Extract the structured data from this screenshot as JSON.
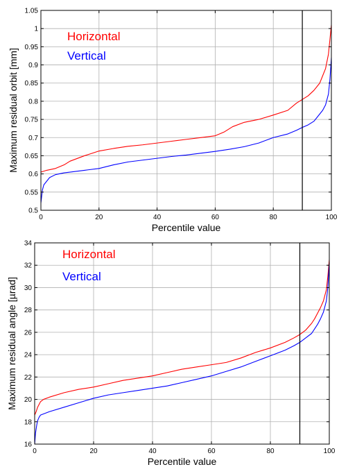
{
  "chart_data": [
    {
      "type": "line",
      "xlabel": "Percentile value",
      "ylabel": "Maximum residual orbit [mm]",
      "xlim": [
        0,
        100
      ],
      "ylim": [
        0.5,
        1.05
      ],
      "xticks": [
        0,
        20,
        40,
        60,
        80,
        100
      ],
      "yticks": [
        0.5,
        0.55,
        0.6,
        0.65,
        0.7,
        0.75,
        0.8,
        0.85,
        0.9,
        0.95,
        1,
        1.05
      ],
      "ytick_labels": [
        "0.5",
        "0.55",
        "0.6",
        "0.65",
        "0.7",
        "0.75",
        "0.8",
        "0.85",
        "0.9",
        "0.95",
        "1",
        "1.05"
      ],
      "grid": true,
      "legend_position": "top-left",
      "vline": 90,
      "series": [
        {
          "name": "Horizontal",
          "color": "#ff0000",
          "x": [
            0,
            2,
            5,
            8,
            10,
            15,
            20,
            25,
            30,
            35,
            40,
            45,
            50,
            55,
            60,
            63,
            66,
            70,
            75,
            80,
            85,
            88,
            90,
            92,
            94,
            96,
            97,
            98,
            99,
            99.5,
            100
          ],
          "y": [
            0.605,
            0.61,
            0.615,
            0.625,
            0.635,
            0.65,
            0.663,
            0.67,
            0.676,
            0.68,
            0.685,
            0.69,
            0.695,
            0.7,
            0.705,
            0.715,
            0.73,
            0.742,
            0.75,
            0.762,
            0.775,
            0.795,
            0.805,
            0.815,
            0.83,
            0.85,
            0.87,
            0.89,
            0.93,
            0.97,
            1.01
          ]
        },
        {
          "name": "Vertical",
          "color": "#0000ff",
          "x": [
            0,
            0.5,
            1,
            2,
            3,
            5,
            8,
            10,
            15,
            20,
            25,
            30,
            35,
            40,
            45,
            50,
            55,
            60,
            65,
            70,
            75,
            80,
            85,
            88,
            90,
            92,
            94,
            95,
            96,
            97,
            98,
            99,
            99.5,
            100
          ],
          "y": [
            0.52,
            0.555,
            0.57,
            0.58,
            0.59,
            0.598,
            0.603,
            0.605,
            0.61,
            0.615,
            0.625,
            0.633,
            0.638,
            0.643,
            0.648,
            0.652,
            0.657,
            0.662,
            0.668,
            0.675,
            0.685,
            0.7,
            0.71,
            0.72,
            0.728,
            0.735,
            0.745,
            0.755,
            0.765,
            0.775,
            0.79,
            0.82,
            0.86,
            0.92
          ]
        }
      ]
    },
    {
      "type": "line",
      "xlabel": "Percentile value",
      "ylabel": "Maximum residual angle [µrad]",
      "xlim": [
        0,
        100
      ],
      "ylim": [
        16,
        34
      ],
      "xticks": [
        0,
        20,
        40,
        60,
        80,
        100
      ],
      "yticks": [
        16,
        18,
        20,
        22,
        24,
        26,
        28,
        30,
        32,
        34
      ],
      "ytick_labels": [
        "16",
        "18",
        "20",
        "22",
        "24",
        "26",
        "28",
        "30",
        "32",
        "34"
      ],
      "grid": true,
      "legend_position": "top-left",
      "vline": 90,
      "series": [
        {
          "name": "Horizontal",
          "color": "#ff0000",
          "x": [
            0,
            0.5,
            1,
            2,
            3,
            5,
            10,
            15,
            20,
            25,
            30,
            35,
            40,
            45,
            50,
            55,
            60,
            65,
            70,
            75,
            80,
            85,
            88,
            90,
            92,
            94,
            95,
            96,
            97,
            98,
            99,
            99.5,
            100
          ],
          "y": [
            18.6,
            18.9,
            19.3,
            19.8,
            20,
            20.2,
            20.6,
            20.9,
            21.1,
            21.4,
            21.7,
            21.9,
            22.1,
            22.4,
            22.7,
            22.9,
            23.1,
            23.3,
            23.7,
            24.2,
            24.6,
            25.1,
            25.5,
            25.8,
            26.2,
            26.8,
            27.2,
            27.7,
            28.2,
            28.8,
            29.8,
            31,
            32.5
          ]
        },
        {
          "name": "Vertical",
          "color": "#0000ff",
          "x": [
            0,
            0.3,
            0.7,
            1,
            1.5,
            2,
            3,
            5,
            10,
            15,
            20,
            25,
            30,
            35,
            40,
            45,
            50,
            55,
            60,
            65,
            70,
            75,
            80,
            85,
            88,
            90,
            92,
            94,
            95,
            96,
            97,
            98,
            99,
            99.5,
            100
          ],
          "y": [
            16,
            17,
            17.7,
            18.1,
            18.4,
            18.6,
            18.7,
            18.9,
            19.3,
            19.7,
            20.1,
            20.4,
            20.6,
            20.8,
            21,
            21.2,
            21.5,
            21.8,
            22.1,
            22.5,
            22.9,
            23.4,
            23.9,
            24.4,
            24.8,
            25.1,
            25.5,
            25.9,
            26.3,
            26.7,
            27.2,
            27.8,
            28.8,
            30,
            32.2
          ]
        }
      ]
    }
  ]
}
